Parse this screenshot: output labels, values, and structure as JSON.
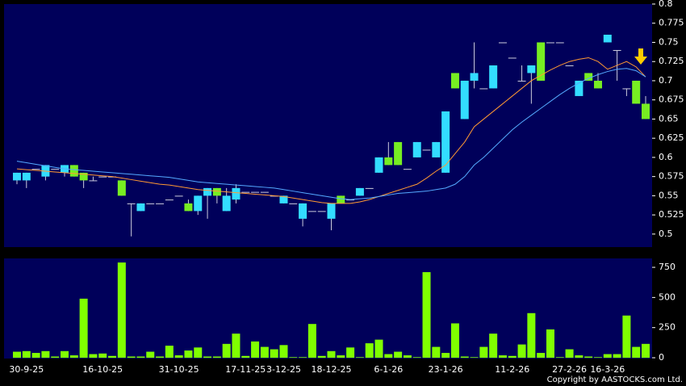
{
  "chart_data": [
    {
      "type": "candlestick",
      "ylim": [
        0.483,
        0.8
      ],
      "yticks": [
        0.5,
        0.525,
        0.55,
        0.575,
        0.6,
        0.625,
        0.65,
        0.675,
        0.7,
        0.725,
        0.75,
        0.775,
        0.8
      ],
      "up_color": "#33ddff",
      "down_color": "#77ee22",
      "open": [
        0.57,
        0.57,
        0.585,
        0.575,
        0.585,
        0.58,
        0.59,
        0.58,
        0.57,
        0.575,
        0.575,
        0.57,
        0.54,
        0.53,
        0.54,
        0.54,
        0.545,
        0.55,
        0.54,
        0.53,
        0.55,
        0.56,
        0.53,
        0.545,
        0.555,
        0.555,
        0.555,
        0.55,
        0.54,
        0.54,
        0.52,
        0.53,
        0.53,
        0.52,
        0.55,
        0.545,
        0.55,
        0.56,
        0.58,
        0.6,
        0.62,
        0.585,
        0.6,
        0.61,
        0.6,
        0.58,
        0.71,
        0.65,
        0.7,
        0.69,
        0.69,
        0.75,
        0.73,
        0.7,
        0.71,
        0.75,
        0.75,
        0.75,
        0.72,
        0.68,
        0.71,
        0.7,
        0.75,
        0.74,
        0.69,
        0.7,
        0.67
      ],
      "high": [
        0.58,
        0.58,
        0.585,
        0.59,
        0.585,
        0.59,
        0.59,
        0.58,
        0.575,
        0.575,
        0.575,
        0.57,
        0.54,
        0.54,
        0.54,
        0.54,
        0.545,
        0.55,
        0.545,
        0.55,
        0.56,
        0.56,
        0.56,
        0.565,
        0.555,
        0.555,
        0.555,
        0.55,
        0.55,
        0.54,
        0.54,
        0.53,
        0.53,
        0.54,
        0.55,
        0.545,
        0.56,
        0.56,
        0.6,
        0.62,
        0.62,
        0.585,
        0.62,
        0.61,
        0.62,
        0.66,
        0.71,
        0.7,
        0.75,
        0.69,
        0.72,
        0.75,
        0.73,
        0.72,
        0.72,
        0.75,
        0.75,
        0.75,
        0.72,
        0.7,
        0.71,
        0.71,
        0.76,
        0.74,
        0.69,
        0.7,
        0.68
      ],
      "low": [
        0.565,
        0.56,
        0.585,
        0.57,
        0.585,
        0.575,
        0.575,
        0.56,
        0.57,
        0.575,
        0.575,
        0.55,
        0.497,
        0.53,
        0.54,
        0.54,
        0.545,
        0.55,
        0.53,
        0.525,
        0.52,
        0.54,
        0.53,
        0.54,
        0.555,
        0.555,
        0.555,
        0.55,
        0.54,
        0.54,
        0.51,
        0.53,
        0.53,
        0.505,
        0.54,
        0.545,
        0.55,
        0.56,
        0.58,
        0.59,
        0.59,
        0.585,
        0.6,
        0.61,
        0.6,
        0.58,
        0.69,
        0.65,
        0.69,
        0.69,
        0.69,
        0.75,
        0.73,
        0.7,
        0.67,
        0.7,
        0.75,
        0.75,
        0.72,
        0.68,
        0.7,
        0.69,
        0.75,
        0.7,
        0.68,
        0.67,
        0.65
      ],
      "close": [
        0.58,
        0.58,
        0.585,
        0.59,
        0.585,
        0.59,
        0.575,
        0.57,
        0.57,
        0.575,
        0.575,
        0.55,
        0.54,
        0.54,
        0.54,
        0.54,
        0.545,
        0.55,
        0.53,
        0.55,
        0.56,
        0.55,
        0.55,
        0.56,
        0.555,
        0.555,
        0.555,
        0.55,
        0.55,
        0.54,
        0.54,
        0.53,
        0.53,
        0.54,
        0.54,
        0.545,
        0.56,
        0.56,
        0.6,
        0.59,
        0.59,
        0.585,
        0.62,
        0.61,
        0.62,
        0.66,
        0.69,
        0.7,
        0.71,
        0.69,
        0.72,
        0.75,
        0.73,
        0.7,
        0.72,
        0.7,
        0.75,
        0.75,
        0.72,
        0.7,
        0.7,
        0.69,
        0.76,
        0.74,
        0.69,
        0.67,
        0.65
      ],
      "series": [
        {
          "color": "#ff9933",
          "values": [
            0.585,
            0.584,
            0.583,
            0.582,
            0.581,
            0.58,
            0.579,
            0.578,
            0.577,
            0.576,
            0.575,
            0.573,
            0.571,
            0.569,
            0.567,
            0.565,
            0.564,
            0.562,
            0.56,
            0.558,
            0.557,
            0.556,
            0.555,
            0.554,
            0.553,
            0.552,
            0.551,
            0.55,
            0.549,
            0.547,
            0.545,
            0.543,
            0.541,
            0.54,
            0.54,
            0.54,
            0.542,
            0.545,
            0.549,
            0.553,
            0.557,
            0.561,
            0.565,
            0.573,
            0.582,
            0.59,
            0.605,
            0.62,
            0.64,
            0.65,
            0.66,
            0.67,
            0.68,
            0.69,
            0.7,
            0.707,
            0.714,
            0.72,
            0.725,
            0.728,
            0.73,
            0.725,
            0.715,
            0.72,
            0.725,
            0.718,
            0.705
          ]
        },
        {
          "color": "#55aaff",
          "values": [
            0.595,
            0.593,
            0.591,
            0.589,
            0.587,
            0.585,
            0.584,
            0.583,
            0.582,
            0.581,
            0.58,
            0.579,
            0.578,
            0.577,
            0.576,
            0.575,
            0.574,
            0.572,
            0.57,
            0.568,
            0.567,
            0.566,
            0.565,
            0.564,
            0.563,
            0.562,
            0.561,
            0.56,
            0.558,
            0.556,
            0.554,
            0.552,
            0.55,
            0.548,
            0.546,
            0.545,
            0.546,
            0.547,
            0.549,
            0.551,
            0.553,
            0.554,
            0.555,
            0.556,
            0.558,
            0.56,
            0.565,
            0.575,
            0.59,
            0.6,
            0.612,
            0.624,
            0.636,
            0.646,
            0.655,
            0.664,
            0.673,
            0.682,
            0.69,
            0.697,
            0.703,
            0.708,
            0.712,
            0.715,
            0.716,
            0.713,
            0.705
          ]
        }
      ]
    },
    {
      "type": "bar",
      "categories": [
        null,
        "30-9-25",
        null,
        null,
        null,
        null,
        null,
        null,
        null,
        "16-10-25",
        null,
        null,
        null,
        null,
        null,
        null,
        null,
        "31-10-25",
        null,
        null,
        null,
        null,
        null,
        null,
        "17-11-25",
        null,
        null,
        null,
        "3-12-25",
        null,
        null,
        null,
        null,
        "18-12-25",
        null,
        null,
        null,
        null,
        null,
        "6-1-26",
        null,
        null,
        null,
        null,
        null,
        "23-1-26",
        null,
        null,
        null,
        null,
        null,
        null,
        "11-2-26",
        null,
        null,
        null,
        null,
        null,
        "27-2-26",
        null,
        null,
        null,
        "16-3-26",
        null,
        null,
        null,
        null
      ],
      "values": [
        50,
        55,
        40,
        55,
        10,
        55,
        20,
        490,
        30,
        35,
        15,
        790,
        10,
        10,
        50,
        10,
        100,
        20,
        60,
        85,
        10,
        10,
        115,
        200,
        15,
        135,
        90,
        70,
        105,
        5,
        5,
        280,
        15,
        55,
        20,
        85,
        5,
        120,
        150,
        30,
        50,
        20,
        5,
        710,
        90,
        40,
        285,
        10,
        5,
        90,
        200,
        20,
        15,
        110,
        370,
        40,
        235,
        5,
        70,
        20,
        10,
        5,
        30,
        30,
        350,
        90,
        115
      ],
      "color": "#80ff00",
      "ylim": [
        0,
        824
      ],
      "yticks": [
        0,
        250,
        500,
        750
      ]
    }
  ],
  "footer": "Copyright by AASTOCKS.com Ltd."
}
